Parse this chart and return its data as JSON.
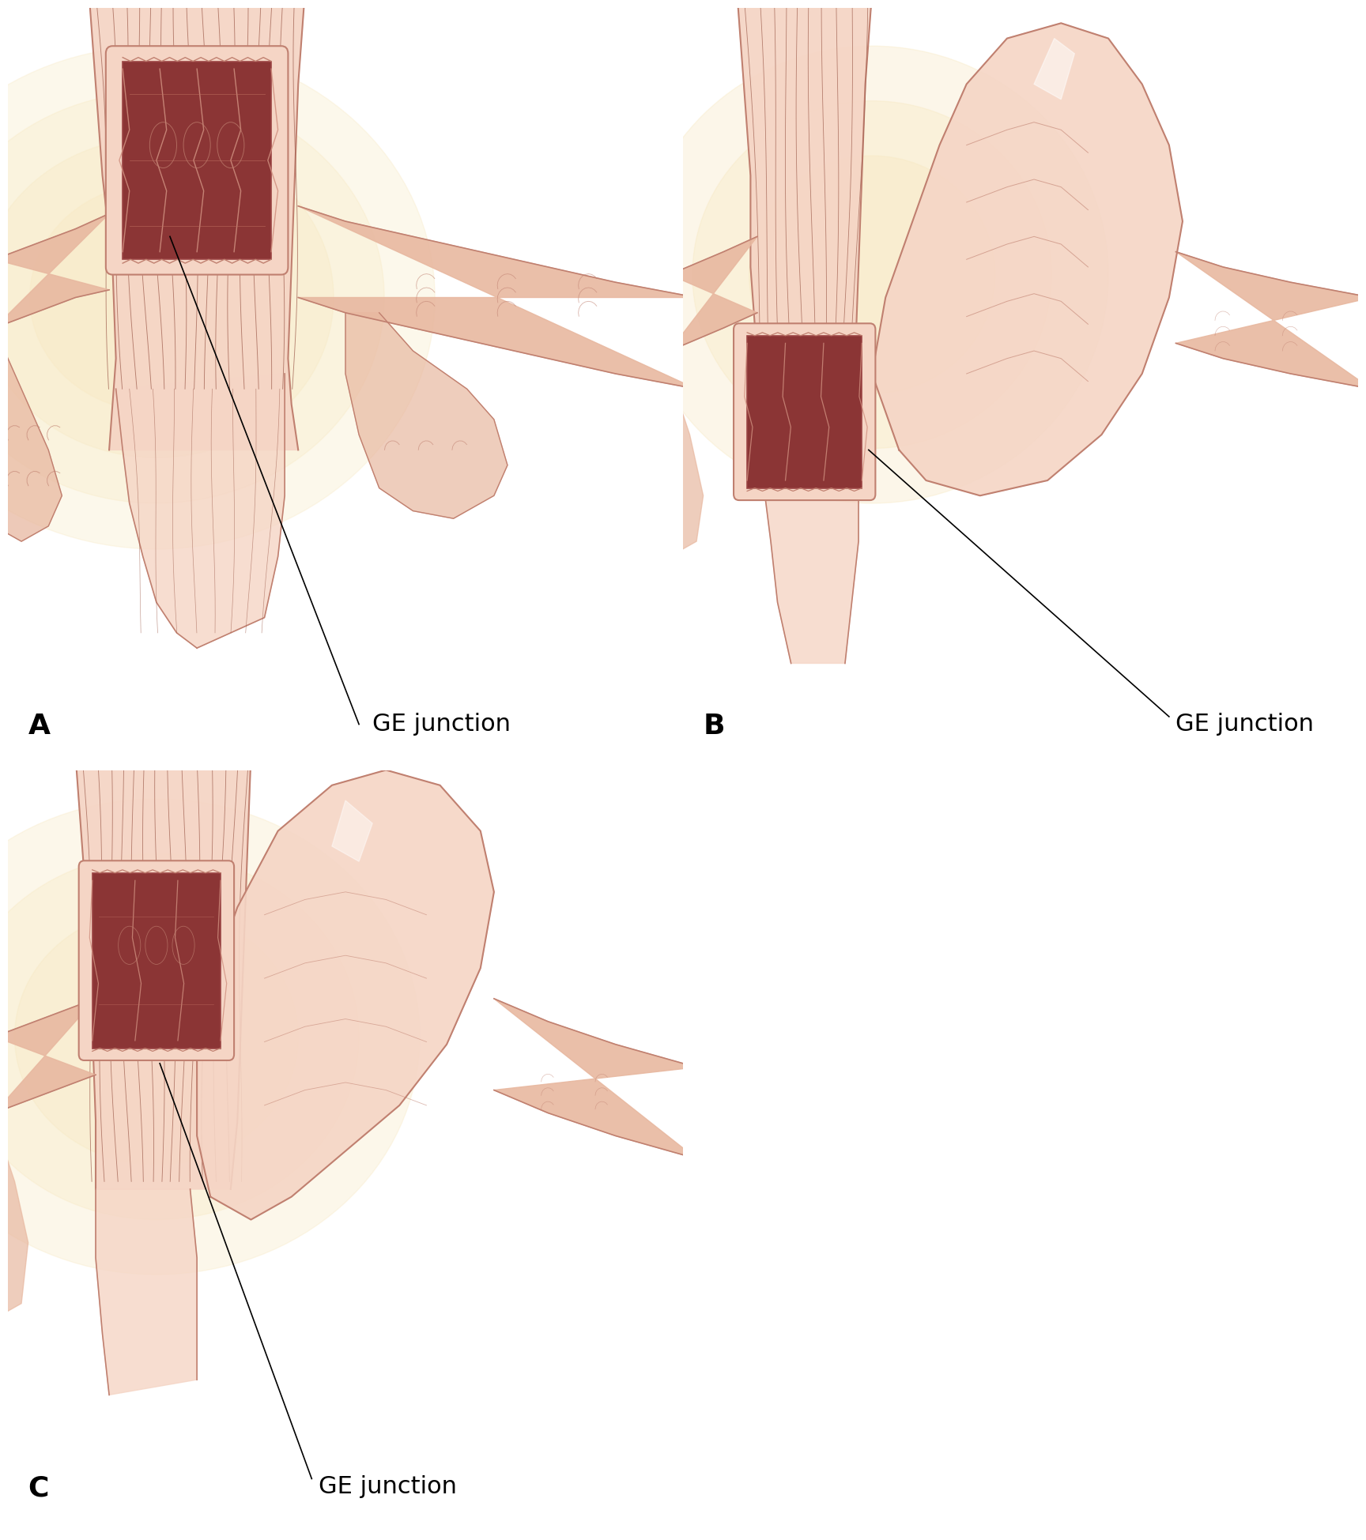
{
  "figure_width": 17.08,
  "figure_height": 19.29,
  "dpi": 100,
  "bg_color": "#ffffff",
  "label_A": "A",
  "label_B": "B",
  "label_C": "C",
  "label_GE": "GE junction",
  "skin_light": "#f5d5c8",
  "skin_mid": "#e8b8a8",
  "skin_dark": "#c8857a",
  "muscle_dark": "#b06060",
  "muscle_mid": "#c87878",
  "esoph_inner": "#8b3a3a",
  "glow_color": "#f5e0a0",
  "line_color": "#000000",
  "label_fontsize": 22,
  "panel_label_fontsize": 26
}
